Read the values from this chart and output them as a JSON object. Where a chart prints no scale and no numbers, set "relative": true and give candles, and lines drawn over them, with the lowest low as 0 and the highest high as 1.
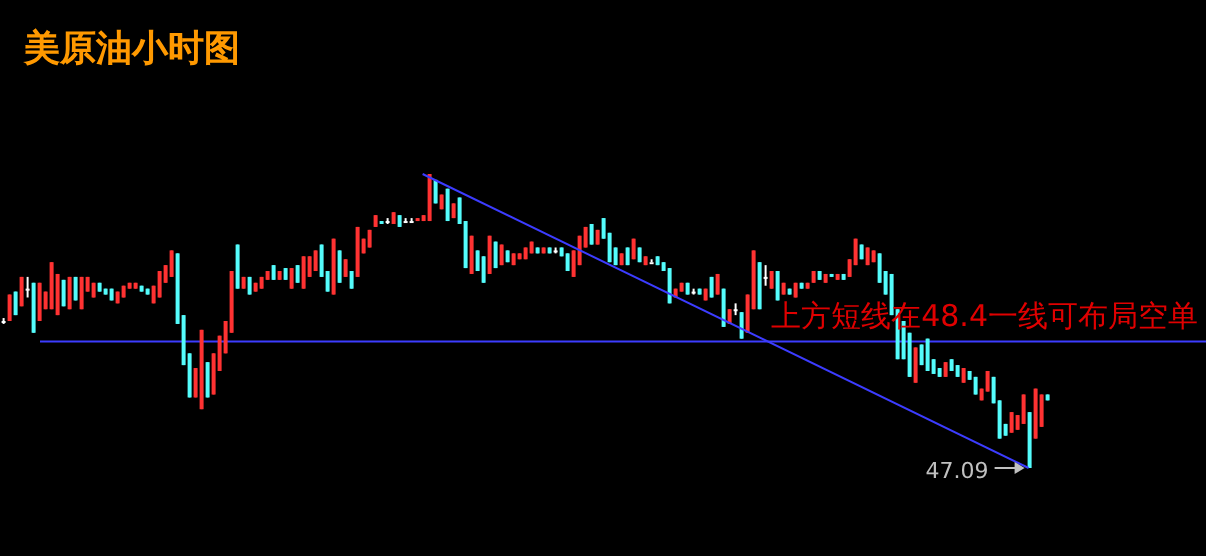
{
  "chart_data": {
    "type": "candlestick",
    "title": "美原油小时图",
    "relative": true,
    "categories": [
      null,
      null,
      null,
      null,
      null,
      null,
      null,
      null,
      null,
      null,
      null,
      null,
      null,
      null,
      null,
      null,
      null,
      null,
      null,
      null,
      null,
      null,
      null,
      null,
      null,
      null,
      null,
      null,
      null,
      null,
      null,
      null,
      null,
      null,
      null,
      null,
      null,
      null,
      null,
      null,
      null,
      null,
      null,
      null,
      null,
      null,
      null,
      null,
      null,
      null,
      null,
      null,
      null,
      null,
      null,
      null,
      null,
      null,
      null,
      null,
      null,
      null,
      null,
      null,
      null,
      null,
      null,
      null,
      null,
      null,
      null,
      null,
      null,
      null,
      null,
      null,
      null,
      null,
      null,
      null,
      null,
      null,
      null,
      null,
      null,
      null,
      null,
      null,
      null,
      null,
      null,
      null,
      null,
      null,
      null,
      null,
      null,
      null,
      null,
      null,
      null,
      null,
      null,
      null,
      null,
      null,
      null,
      null,
      null,
      null,
      null,
      null,
      null,
      null,
      null,
      null,
      null,
      null,
      null,
      null,
      null,
      null,
      null,
      null,
      null,
      null,
      null,
      null,
      null,
      null,
      null,
      null,
      null,
      null,
      null,
      null,
      null,
      null,
      null,
      null,
      null,
      null,
      null,
      null,
      null,
      null,
      null,
      null,
      null,
      null,
      null,
      null,
      null,
      null,
      null,
      null,
      null,
      null,
      null,
      null,
      null,
      null,
      null,
      null,
      null,
      null,
      null,
      null,
      null,
      null,
      null,
      null,
      null,
      null,
      null
    ],
    "ohlc": [
      [
        0.5,
        0.51,
        0.49,
        0.5
      ],
      [
        0.5,
        0.59,
        0.5,
        0.59
      ],
      [
        0.6,
        0.6,
        0.52,
        0.52
      ],
      [
        0.55,
        0.65,
        0.55,
        0.65
      ],
      [
        0.61,
        0.65,
        0.58,
        0.61
      ],
      [
        0.63,
        0.63,
        0.46,
        0.46
      ],
      [
        0.5,
        0.63,
        0.5,
        0.63
      ],
      [
        0.54,
        0.6,
        0.54,
        0.6
      ],
      [
        0.54,
        0.7,
        0.54,
        0.7
      ],
      [
        0.52,
        0.66,
        0.52,
        0.66
      ],
      [
        0.64,
        0.64,
        0.55,
        0.55
      ],
      [
        0.54,
        0.65,
        0.54,
        0.65
      ],
      [
        0.65,
        0.65,
        0.57,
        0.57
      ],
      [
        0.54,
        0.65,
        0.54,
        0.65
      ],
      [
        0.6,
        0.65,
        0.6,
        0.65
      ],
      [
        0.58,
        0.63,
        0.58,
        0.63
      ],
      [
        0.63,
        0.63,
        0.6,
        0.6
      ],
      [
        0.61,
        0.61,
        0.59,
        0.59
      ],
      [
        0.61,
        0.61,
        0.57,
        0.57
      ],
      [
        0.56,
        0.6,
        0.56,
        0.6
      ],
      [
        0.58,
        0.62,
        0.58,
        0.62
      ],
      [
        0.61,
        0.63,
        0.61,
        0.63
      ],
      [
        0.61,
        0.63,
        0.61,
        0.63
      ],
      [
        0.62,
        0.62,
        0.6,
        0.6
      ],
      [
        0.61,
        0.61,
        0.59,
        0.59
      ],
      [
        0.56,
        0.62,
        0.56,
        0.62
      ],
      [
        0.58,
        0.67,
        0.58,
        0.67
      ],
      [
        0.63,
        0.69,
        0.63,
        0.69
      ],
      [
        0.65,
        0.74,
        0.65,
        0.74
      ],
      [
        0.73,
        0.73,
        0.49,
        0.49
      ],
      [
        0.52,
        0.52,
        0.35,
        0.35
      ],
      [
        0.39,
        0.39,
        0.24,
        0.24
      ],
      [
        0.24,
        0.34,
        0.24,
        0.34
      ],
      [
        0.2,
        0.47,
        0.2,
        0.47
      ],
      [
        0.36,
        0.36,
        0.24,
        0.24
      ],
      [
        0.25,
        0.39,
        0.25,
        0.39
      ],
      [
        0.33,
        0.45,
        0.33,
        0.45
      ],
      [
        0.39,
        0.5,
        0.39,
        0.5
      ],
      [
        0.46,
        0.67,
        0.46,
        0.67
      ],
      [
        0.76,
        0.76,
        0.61,
        0.61
      ],
      [
        0.61,
        0.65,
        0.61,
        0.65
      ],
      [
        0.65,
        0.65,
        0.59,
        0.59
      ],
      [
        0.6,
        0.63,
        0.6,
        0.63
      ],
      [
        0.61,
        0.65,
        0.61,
        0.65
      ],
      [
        0.64,
        0.67,
        0.64,
        0.67
      ],
      [
        0.69,
        0.69,
        0.64,
        0.64
      ],
      [
        0.64,
        0.67,
        0.64,
        0.67
      ],
      [
        0.68,
        0.68,
        0.64,
        0.64
      ],
      [
        0.61,
        0.68,
        0.61,
        0.68
      ],
      [
        0.69,
        0.69,
        0.63,
        0.63
      ],
      [
        0.61,
        0.72,
        0.61,
        0.72
      ],
      [
        0.65,
        0.72,
        0.65,
        0.72
      ],
      [
        0.67,
        0.74,
        0.67,
        0.74
      ],
      [
        0.76,
        0.76,
        0.65,
        0.65
      ],
      [
        0.67,
        0.67,
        0.6,
        0.6
      ],
      [
        0.59,
        0.78,
        0.59,
        0.78
      ],
      [
        0.74,
        0.74,
        0.63,
        0.63
      ],
      [
        0.65,
        0.71,
        0.65,
        0.71
      ],
      [
        0.67,
        0.67,
        0.61,
        0.61
      ],
      [
        0.65,
        0.82,
        0.65,
        0.82
      ],
      [
        0.73,
        0.78,
        0.73,
        0.78
      ],
      [
        0.75,
        0.81,
        0.75,
        0.81
      ],
      [
        0.82,
        0.86,
        0.82,
        0.86
      ],
      [
        0.84,
        0.84,
        0.83,
        0.83
      ],
      [
        0.84,
        0.85,
        0.83,
        0.84
      ],
      [
        0.83,
        0.87,
        0.83,
        0.87
      ],
      [
        0.86,
        0.86,
        0.82,
        0.82
      ],
      [
        0.84,
        0.85,
        0.84,
        0.84
      ],
      [
        0.84,
        0.85,
        0.84,
        0.84
      ],
      [
        0.84,
        0.85,
        0.84,
        0.85
      ],
      [
        0.84,
        0.86,
        0.84,
        0.86
      ],
      [
        0.84,
        1,
        0.84,
        1
      ],
      [
        0.98,
        0.98,
        0.9,
        0.9
      ],
      [
        0.88,
        0.93,
        0.88,
        0.93
      ],
      [
        0.95,
        0.95,
        0.84,
        0.84
      ],
      [
        0.85,
        0.9,
        0.85,
        0.9
      ],
      [
        0.92,
        0.92,
        0.83,
        0.83
      ],
      [
        0.84,
        0.84,
        0.68,
        0.68
      ],
      [
        0.66,
        0.79,
        0.66,
        0.79
      ],
      [
        0.74,
        0.74,
        0.67,
        0.67
      ],
      [
        0.72,
        0.72,
        0.63,
        0.63
      ],
      [
        0.66,
        0.79,
        0.66,
        0.79
      ],
      [
        0.77,
        0.77,
        0.68,
        0.68
      ],
      [
        0.69,
        0.76,
        0.69,
        0.76
      ],
      [
        0.74,
        0.74,
        0.7,
        0.7
      ],
      [
        0.69,
        0.73,
        0.69,
        0.73
      ],
      [
        0.71,
        0.73,
        0.71,
        0.73
      ],
      [
        0.71,
        0.75,
        0.71,
        0.75
      ],
      [
        0.73,
        0.77,
        0.73,
        0.77
      ],
      [
        0.75,
        0.75,
        0.73,
        0.73
      ],
      [
        0.73,
        0.75,
        0.73,
        0.75
      ],
      [
        0.75,
        0.75,
        0.73,
        0.73
      ],
      [
        0.74,
        0.75,
        0.73,
        0.74
      ],
      [
        0.75,
        0.75,
        0.72,
        0.72
      ],
      [
        0.73,
        0.73,
        0.67,
        0.67
      ],
      [
        0.65,
        0.74,
        0.65,
        0.74
      ],
      [
        0.69,
        0.79,
        0.69,
        0.79
      ],
      [
        0.75,
        0.82,
        0.75,
        0.82
      ],
      [
        0.83,
        0.83,
        0.76,
        0.76
      ],
      [
        0.76,
        0.81,
        0.76,
        0.81
      ],
      [
        0.85,
        0.85,
        0.78,
        0.78
      ],
      [
        0.8,
        0.8,
        0.7,
        0.7
      ],
      [
        0.75,
        0.75,
        0.69,
        0.69
      ],
      [
        0.69,
        0.73,
        0.69,
        0.73
      ],
      [
        0.75,
        0.75,
        0.69,
        0.69
      ],
      [
        0.71,
        0.78,
        0.71,
        0.78
      ],
      [
        0.75,
        0.75,
        0.7,
        0.7
      ],
      [
        0.69,
        0.72,
        0.69,
        0.72
      ],
      [
        0.7,
        0.71,
        0.7,
        0.7
      ],
      [
        0.72,
        0.72,
        0.69,
        0.69
      ],
      [
        0.7,
        0.7,
        0.67,
        0.67
      ],
      [
        0.68,
        0.68,
        0.56,
        0.56
      ],
      [
        0.58,
        0.61,
        0.58,
        0.61
      ],
      [
        0.6,
        0.63,
        0.6,
        0.63
      ],
      [
        0.63,
        0.63,
        0.59,
        0.59
      ],
      [
        0.6,
        0.61,
        0.59,
        0.6
      ],
      [
        0.61,
        0.61,
        0.59,
        0.59
      ],
      [
        0.57,
        0.61,
        0.57,
        0.61
      ],
      [
        0.65,
        0.65,
        0.58,
        0.58
      ],
      [
        0.59,
        0.66,
        0.59,
        0.66
      ],
      [
        0.61,
        0.61,
        0.48,
        0.48
      ],
      [
        0.49,
        0.54,
        0.49,
        0.54
      ],
      [
        0.54,
        0.56,
        0.52,
        0.54
      ],
      [
        0.53,
        0.53,
        0.44,
        0.44
      ],
      [
        0.46,
        0.59,
        0.46,
        0.59
      ],
      [
        0.54,
        0.74,
        0.54,
        0.74
      ],
      [
        0.7,
        0.7,
        0.54,
        0.54
      ],
      [
        0.65,
        0.69,
        0.62,
        0.65
      ],
      [
        0.61,
        0.67,
        0.61,
        0.67
      ],
      [
        0.67,
        0.67,
        0.57,
        0.57
      ],
      [
        0.59,
        0.63,
        0.59,
        0.63
      ],
      [
        0.61,
        0.61,
        0.59,
        0.59
      ],
      [
        0.58,
        0.63,
        0.58,
        0.63
      ],
      [
        0.63,
        0.63,
        0.61,
        0.61
      ],
      [
        0.61,
        0.63,
        0.61,
        0.63
      ],
      [
        0.63,
        0.67,
        0.63,
        0.67
      ],
      [
        0.67,
        0.67,
        0.64,
        0.64
      ],
      [
        0.63,
        0.66,
        0.63,
        0.66
      ],
      [
        0.66,
        0.66,
        0.65,
        0.65
      ],
      [
        0.64,
        0.66,
        0.64,
        0.66
      ],
      [
        0.66,
        0.66,
        0.64,
        0.64
      ],
      [
        0.65,
        0.71,
        0.65,
        0.71
      ],
      [
        0.69,
        0.78,
        0.69,
        0.78
      ],
      [
        0.76,
        0.76,
        0.71,
        0.71
      ],
      [
        0.69,
        0.75,
        0.69,
        0.75
      ],
      [
        0.7,
        0.74,
        0.7,
        0.74
      ],
      [
        0.73,
        0.73,
        0.63,
        0.63
      ],
      [
        0.67,
        0.67,
        0.59,
        0.59
      ],
      [
        0.66,
        0.66,
        0.52,
        0.52
      ],
      [
        0.54,
        0.54,
        0.37,
        0.37
      ],
      [
        0.5,
        0.5,
        0.37,
        0.37
      ],
      [
        0.46,
        0.46,
        0.31,
        0.31
      ],
      [
        0.29,
        0.41,
        0.29,
        0.41
      ],
      [
        0.42,
        0.42,
        0.35,
        0.35
      ],
      [
        0.44,
        0.44,
        0.33,
        0.33
      ],
      [
        0.37,
        0.37,
        0.32,
        0.32
      ],
      [
        0.34,
        0.34,
        0.31,
        0.31
      ],
      [
        0.31,
        0.36,
        0.31,
        0.36
      ],
      [
        0.37,
        0.37,
        0.33,
        0.33
      ],
      [
        0.35,
        0.35,
        0.31,
        0.31
      ],
      [
        0.29,
        0.34,
        0.29,
        0.34
      ],
      [
        0.33,
        0.33,
        0.3,
        0.3
      ],
      [
        0.31,
        0.31,
        0.25,
        0.25
      ],
      [
        0.23,
        0.27,
        0.23,
        0.27
      ],
      [
        0.26,
        0.33,
        0.26,
        0.33
      ],
      [
        0.31,
        0.31,
        0.22,
        0.22
      ],
      [
        0.23,
        0.23,
        0.1,
        0.1
      ],
      [
        0.15,
        0.15,
        0.11,
        0.11
      ],
      [
        0.12,
        0.19,
        0.12,
        0.19
      ],
      [
        0.13,
        0.18,
        0.13,
        0.18
      ],
      [
        0.15,
        0.25,
        0.15,
        0.25
      ],
      [
        0.19,
        0.19,
        0,
        0
      ],
      [
        0.1,
        0.27,
        0.1,
        0.27
      ],
      [
        0.14,
        0.25,
        0.14,
        0.25
      ],
      [
        0.25,
        0.25,
        0.23,
        0.23
      ]
    ],
    "series": [
      {
        "type": "line",
        "values": [
          null,
          null,
          null,
          null,
          null,
          null,
          null,
          null,
          null,
          null,
          null,
          null,
          null,
          null,
          null,
          null,
          null,
          null,
          null,
          null,
          null,
          null,
          null,
          null,
          null,
          null,
          null,
          null,
          null,
          null,
          null,
          null,
          null,
          null,
          null,
          null,
          null,
          null,
          null,
          null,
          null,
          null,
          null,
          null,
          null,
          null,
          null,
          null,
          null,
          null,
          null,
          null,
          null,
          null,
          null,
          null,
          null,
          null,
          null,
          null,
          null,
          null,
          null,
          null,
          null,
          null,
          null,
          null,
          null,
          null,
          1,
          null,
          null,
          null,
          null,
          null,
          null,
          null,
          null,
          null,
          null,
          null,
          null,
          null,
          null,
          null,
          null,
          null,
          null,
          null,
          null,
          null,
          null,
          null,
          null,
          null,
          null,
          null,
          null,
          null,
          null,
          null,
          null,
          null,
          null,
          null,
          null,
          null,
          null,
          null,
          null,
          null,
          null,
          null,
          null,
          null,
          null,
          null,
          null,
          null,
          null,
          null,
          null,
          null,
          null,
          null,
          null,
          null,
          null,
          null,
          null,
          null,
          null,
          null,
          null,
          null,
          null,
          null,
          null,
          null,
          null,
          null,
          null,
          null,
          null,
          null,
          null,
          null,
          null,
          null,
          null,
          null,
          null,
          null,
          null,
          null,
          null,
          null,
          null,
          null,
          null,
          null,
          null,
          null,
          null,
          null,
          null,
          null,
          null,
          null,
          null,
          0,
          null,
          null,
          null
        ],
        "color": "#3c3cff"
      }
    ],
    "ref_lines": [
      {
        "axis": "y",
        "value": 0.43,
        "color": "#3c3cff"
      }
    ],
    "annotations": [
      "47.09",
      "上方短线在48.4一线可布局空单"
    ]
  }
}
